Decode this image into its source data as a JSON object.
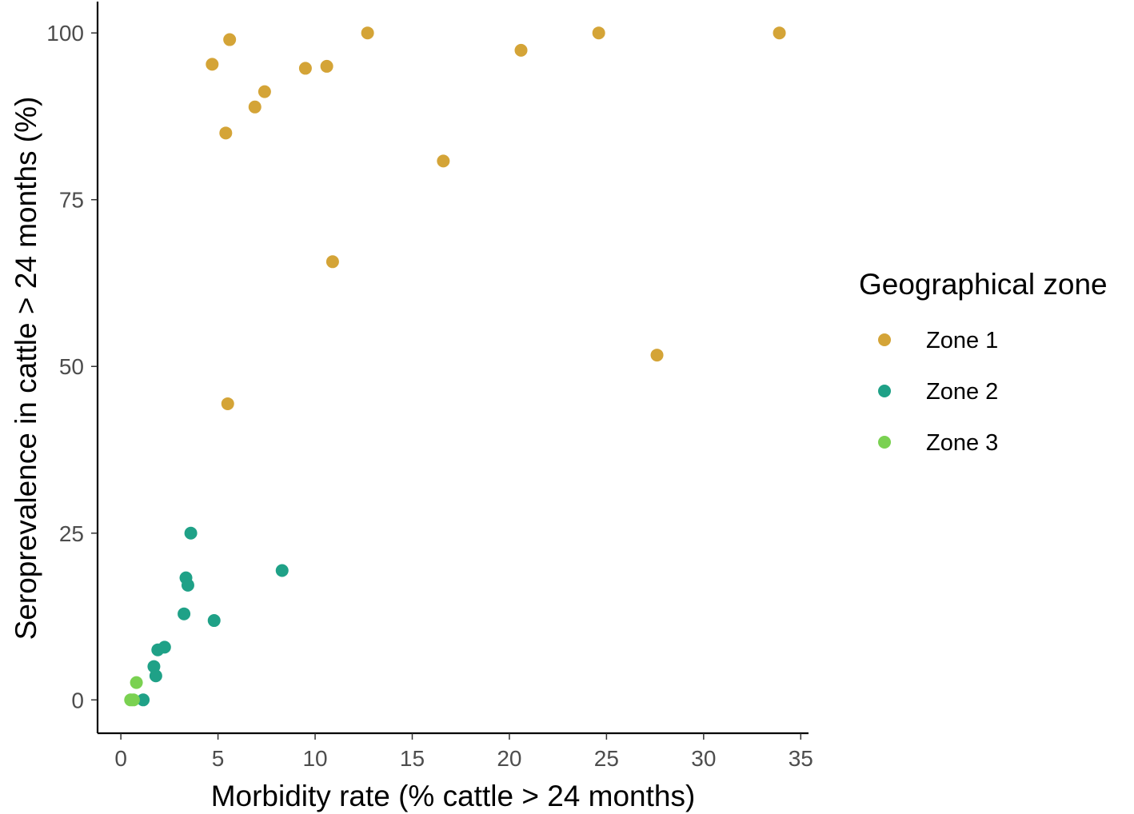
{
  "chart_data": {
    "type": "scatter",
    "title": "",
    "xlabel": "Morbidity rate (% cattle > 24 months)",
    "ylabel": "Seroprevalence in cattle > 24 months (%)",
    "xlim": [
      -1.2,
      35.4
    ],
    "ylim": [
      -5,
      104.7
    ],
    "x_ticks": [
      0,
      5,
      10,
      15,
      20,
      25,
      30,
      35
    ],
    "x_tick_labels": [
      "0",
      "5",
      "10",
      "15",
      "20",
      "25",
      "30",
      "35"
    ],
    "y_ticks": [
      0,
      25,
      50,
      75,
      100
    ],
    "y_tick_labels": [
      "0",
      "25",
      "50",
      "75",
      "100"
    ],
    "grid": false,
    "legend": {
      "title": "Geographical zone",
      "position": "right"
    },
    "series": [
      {
        "name": "Zone 1",
        "color": "#D4A437",
        "points": [
          [
            4.7,
            95.3
          ],
          [
            5.6,
            99.0
          ],
          [
            5.4,
            85.0
          ],
          [
            6.9,
            88.9
          ],
          [
            7.4,
            91.2
          ],
          [
            9.5,
            94.7
          ],
          [
            10.6,
            95.0
          ],
          [
            12.7,
            100.0
          ],
          [
            20.6,
            97.4
          ],
          [
            24.6,
            100.0
          ],
          [
            33.9,
            100.0
          ],
          [
            16.6,
            80.8
          ],
          [
            10.9,
            65.7
          ],
          [
            27.6,
            51.7
          ],
          [
            5.5,
            44.4
          ]
        ]
      },
      {
        "name": "Zone 2",
        "color": "#1FA187",
        "points": [
          [
            3.6,
            25.0
          ],
          [
            3.35,
            18.3
          ],
          [
            3.45,
            17.2
          ],
          [
            8.3,
            19.4
          ],
          [
            3.25,
            12.9
          ],
          [
            4.8,
            11.9
          ],
          [
            1.9,
            7.5
          ],
          [
            2.25,
            7.9
          ],
          [
            1.7,
            5.0
          ],
          [
            1.8,
            3.6
          ],
          [
            1.15,
            0.0
          ]
        ]
      },
      {
        "name": "Zone 3",
        "color": "#7AD151",
        "points": [
          [
            0.8,
            2.6
          ],
          [
            0.5,
            0.0
          ],
          [
            0.65,
            0.0
          ]
        ]
      }
    ]
  }
}
